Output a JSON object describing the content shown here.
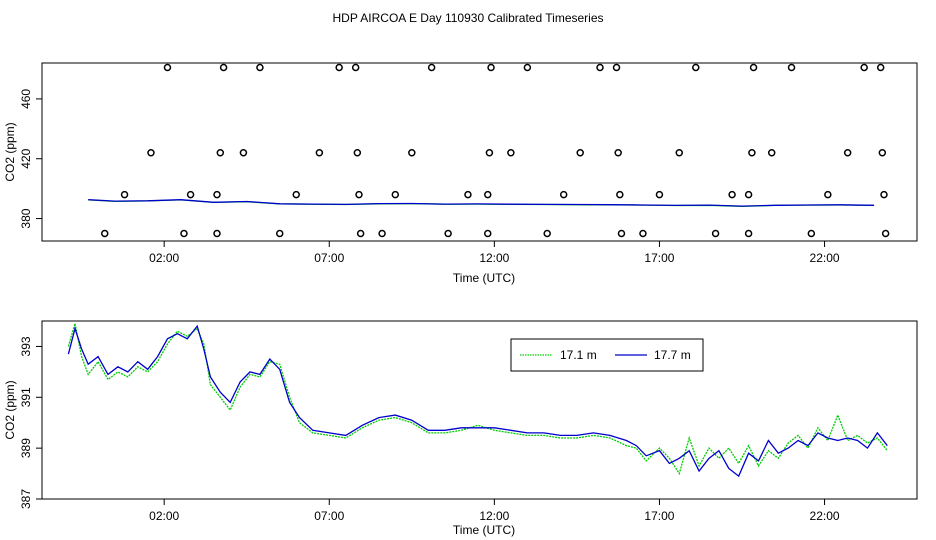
{
  "title": "HDP AIRCOA E  Day 110930  Calibrated Timeseries",
  "colors": {
    "series_a": "#00cc00",
    "series_b": "#0000cc",
    "axis": "#000000",
    "points": "#000000"
  },
  "chart_data": [
    {
      "type": "scatter",
      "xlabel": "Time (UTC)",
      "ylabel": "CO2 (ppm)",
      "xlim": [
        -1.7,
        24.8
      ],
      "ylim": [
        365,
        484
      ],
      "xticks": [
        {
          "v": 2,
          "label": "02:00"
        },
        {
          "v": 7,
          "label": "07:00"
        },
        {
          "v": 12,
          "label": "12:00"
        },
        {
          "v": 17,
          "label": "17:00"
        },
        {
          "v": 22,
          "label": "22:00"
        }
      ],
      "yticks": [
        {
          "v": 380,
          "label": "380"
        },
        {
          "v": 420,
          "label": "420"
        },
        {
          "v": 460,
          "label": "460"
        }
      ],
      "points": [
        {
          "x": 0.2,
          "y": 370
        },
        {
          "x": 0.8,
          "y": 396
        },
        {
          "x": 1.6,
          "y": 424
        },
        {
          "x": 2.1,
          "y": 481
        },
        {
          "x": 2.8,
          "y": 396
        },
        {
          "x": 2.6,
          "y": 370
        },
        {
          "x": 3.6,
          "y": 396
        },
        {
          "x": 3.6,
          "y": 370
        },
        {
          "x": 3.7,
          "y": 424
        },
        {
          "x": 3.8,
          "y": 481
        },
        {
          "x": 4.4,
          "y": 424
        },
        {
          "x": 4.9,
          "y": 481
        },
        {
          "x": 5.5,
          "y": 370
        },
        {
          "x": 6.0,
          "y": 396
        },
        {
          "x": 6.7,
          "y": 424
        },
        {
          "x": 7.3,
          "y": 481
        },
        {
          "x": 7.8,
          "y": 481
        },
        {
          "x": 7.85,
          "y": 424
        },
        {
          "x": 7.9,
          "y": 396
        },
        {
          "x": 7.95,
          "y": 370
        },
        {
          "x": 8.6,
          "y": 370
        },
        {
          "x": 9.0,
          "y": 396
        },
        {
          "x": 9.5,
          "y": 424
        },
        {
          "x": 10.1,
          "y": 481
        },
        {
          "x": 10.6,
          "y": 370
        },
        {
          "x": 11.2,
          "y": 396
        },
        {
          "x": 11.8,
          "y": 396
        },
        {
          "x": 11.8,
          "y": 370
        },
        {
          "x": 11.85,
          "y": 424
        },
        {
          "x": 11.9,
          "y": 481
        },
        {
          "x": 12.5,
          "y": 424
        },
        {
          "x": 13.0,
          "y": 481
        },
        {
          "x": 13.6,
          "y": 370
        },
        {
          "x": 14.1,
          "y": 396
        },
        {
          "x": 14.6,
          "y": 424
        },
        {
          "x": 15.2,
          "y": 481
        },
        {
          "x": 15.7,
          "y": 481
        },
        {
          "x": 15.75,
          "y": 424
        },
        {
          "x": 15.8,
          "y": 396
        },
        {
          "x": 15.85,
          "y": 370
        },
        {
          "x": 16.5,
          "y": 370
        },
        {
          "x": 17.0,
          "y": 396
        },
        {
          "x": 17.6,
          "y": 424
        },
        {
          "x": 18.1,
          "y": 481
        },
        {
          "x": 18.7,
          "y": 370
        },
        {
          "x": 19.2,
          "y": 396
        },
        {
          "x": 19.7,
          "y": 396
        },
        {
          "x": 19.7,
          "y": 370
        },
        {
          "x": 19.8,
          "y": 424
        },
        {
          "x": 19.85,
          "y": 481
        },
        {
          "x": 20.4,
          "y": 424
        },
        {
          "x": 21.0,
          "y": 481
        },
        {
          "x": 21.6,
          "y": 370
        },
        {
          "x": 22.1,
          "y": 396
        },
        {
          "x": 22.7,
          "y": 424
        },
        {
          "x": 23.2,
          "y": 481
        },
        {
          "x": 23.7,
          "y": 481
        },
        {
          "x": 23.75,
          "y": 424
        },
        {
          "x": 23.8,
          "y": 396
        },
        {
          "x": 23.85,
          "y": 370
        }
      ],
      "series": [
        {
          "x": [
            -0.3,
            0.5,
            1.5,
            2.5,
            3.5,
            4.5,
            5.5,
            6.5,
            7.5,
            8.5,
            9.5,
            10.5,
            11.5,
            12.5,
            13.5,
            14.5,
            15.5,
            16.5,
            17.5,
            18.5,
            19.5,
            20.5,
            21.5,
            22.5,
            23.5
          ],
          "y": [
            392.5,
            391.5,
            391.8,
            392.5,
            390.8,
            391.3,
            389.8,
            389.6,
            389.4,
            389.9,
            390.0,
            389.6,
            389.7,
            389.5,
            389.4,
            389.3,
            389.2,
            389.0,
            388.7,
            388.9,
            388.2,
            388.8,
            389.0,
            389.1,
            388.8
          ]
        },
        {
          "x": [
            -0.3,
            0.5,
            1.5,
            2.5,
            3.5,
            4.5,
            5.5,
            6.5,
            7.5,
            8.5,
            9.5,
            10.5,
            11.5,
            12.5,
            13.5,
            14.5,
            15.5,
            16.5,
            17.5,
            18.5,
            19.5,
            20.5,
            21.5,
            22.5,
            23.5
          ],
          "y": [
            392.6,
            391.7,
            391.9,
            392.6,
            390.9,
            391.4,
            389.9,
            389.7,
            389.5,
            390.0,
            390.1,
            389.7,
            389.8,
            389.6,
            389.5,
            389.4,
            389.3,
            389.1,
            388.8,
            389.0,
            388.3,
            388.9,
            389.1,
            389.2,
            388.9
          ]
        }
      ]
    },
    {
      "type": "line",
      "xlabel": "Time (UTC)",
      "ylabel": "CO2 (ppm)",
      "xlim": [
        -1.7,
        24.8
      ],
      "ylim": [
        387,
        394
      ],
      "xticks": [
        {
          "v": 2,
          "label": "02:00"
        },
        {
          "v": 7,
          "label": "07:00"
        },
        {
          "v": 12,
          "label": "12:00"
        },
        {
          "v": 17,
          "label": "17:00"
        },
        {
          "v": 22,
          "label": "22:00"
        }
      ],
      "yticks": [
        {
          "v": 387,
          "label": "387"
        },
        {
          "v": 389,
          "label": "389"
        },
        {
          "v": 391,
          "label": "391"
        },
        {
          "v": 393,
          "label": "393"
        }
      ],
      "legend": "top-right",
      "series": [
        {
          "name": "17.1 m",
          "x": [
            -0.9,
            -0.7,
            -0.5,
            -0.3,
            0.0,
            0.3,
            0.6,
            0.9,
            1.2,
            1.5,
            1.8,
            2.1,
            2.4,
            2.7,
            3.0,
            3.2,
            3.4,
            3.7,
            4.0,
            4.3,
            4.6,
            4.9,
            5.2,
            5.5,
            5.8,
            6.1,
            6.5,
            7.0,
            7.5,
            8.0,
            8.5,
            9.0,
            9.5,
            10.0,
            10.5,
            11.0,
            11.5,
            12.0,
            12.5,
            13.0,
            13.5,
            14.0,
            14.5,
            15.0,
            15.5,
            16.0,
            16.3,
            16.6,
            17.0,
            17.3,
            17.6,
            17.9,
            18.2,
            18.5,
            18.8,
            19.1,
            19.4,
            19.7,
            20.0,
            20.3,
            20.6,
            20.9,
            21.2,
            21.5,
            21.8,
            22.1,
            22.4,
            22.7,
            23.0,
            23.3,
            23.6,
            23.9
          ],
          "y": [
            393.0,
            393.9,
            392.6,
            391.9,
            392.4,
            391.7,
            392.0,
            391.8,
            392.2,
            392.0,
            392.4,
            393.1,
            393.6,
            393.4,
            393.7,
            393.1,
            391.5,
            391.0,
            390.5,
            391.4,
            391.9,
            391.8,
            392.4,
            392.3,
            391.0,
            390.0,
            389.6,
            389.5,
            389.4,
            389.8,
            390.1,
            390.2,
            390.0,
            389.6,
            389.6,
            389.7,
            389.9,
            389.7,
            389.6,
            389.5,
            389.5,
            389.4,
            389.4,
            389.5,
            389.4,
            389.1,
            389.0,
            388.5,
            389.0,
            388.6,
            388.0,
            389.4,
            388.3,
            389.0,
            388.6,
            389.0,
            388.4,
            389.1,
            388.3,
            388.9,
            388.6,
            389.2,
            389.5,
            389.0,
            389.8,
            389.3,
            390.3,
            389.3,
            389.5,
            389.2,
            389.4,
            388.9
          ]
        },
        {
          "name": "17.7 m",
          "x": [
            -0.9,
            -0.7,
            -0.5,
            -0.3,
            0.0,
            0.3,
            0.6,
            0.9,
            1.2,
            1.5,
            1.8,
            2.1,
            2.4,
            2.7,
            3.0,
            3.2,
            3.4,
            3.7,
            4.0,
            4.3,
            4.6,
            4.9,
            5.2,
            5.5,
            5.8,
            6.1,
            6.5,
            7.0,
            7.5,
            8.0,
            8.5,
            9.0,
            9.5,
            10.0,
            10.5,
            11.0,
            11.5,
            12.0,
            12.5,
            13.0,
            13.5,
            14.0,
            14.5,
            15.0,
            15.5,
            16.0,
            16.3,
            16.6,
            17.0,
            17.3,
            17.6,
            17.9,
            18.2,
            18.5,
            18.8,
            19.1,
            19.4,
            19.7,
            20.0,
            20.3,
            20.6,
            20.9,
            21.2,
            21.5,
            21.8,
            22.1,
            22.4,
            22.7,
            23.0,
            23.3,
            23.6,
            23.9
          ],
          "y": [
            392.7,
            393.7,
            392.9,
            392.3,
            392.6,
            391.9,
            392.2,
            392.0,
            392.4,
            392.1,
            392.6,
            393.3,
            393.5,
            393.3,
            393.8,
            392.9,
            391.8,
            391.2,
            390.8,
            391.6,
            392.0,
            391.9,
            392.5,
            392.1,
            390.8,
            390.2,
            389.7,
            389.6,
            389.5,
            389.9,
            390.2,
            390.3,
            390.1,
            389.7,
            389.7,
            389.8,
            389.8,
            389.8,
            389.7,
            389.6,
            389.6,
            389.5,
            389.5,
            389.6,
            389.5,
            389.3,
            389.1,
            388.7,
            388.9,
            388.4,
            388.6,
            388.9,
            388.1,
            388.6,
            388.9,
            388.2,
            387.9,
            388.8,
            388.5,
            389.3,
            388.8,
            389.0,
            389.3,
            389.1,
            389.6,
            389.4,
            389.3,
            389.4,
            389.3,
            389.0,
            389.6,
            389.1
          ]
        }
      ]
    }
  ]
}
